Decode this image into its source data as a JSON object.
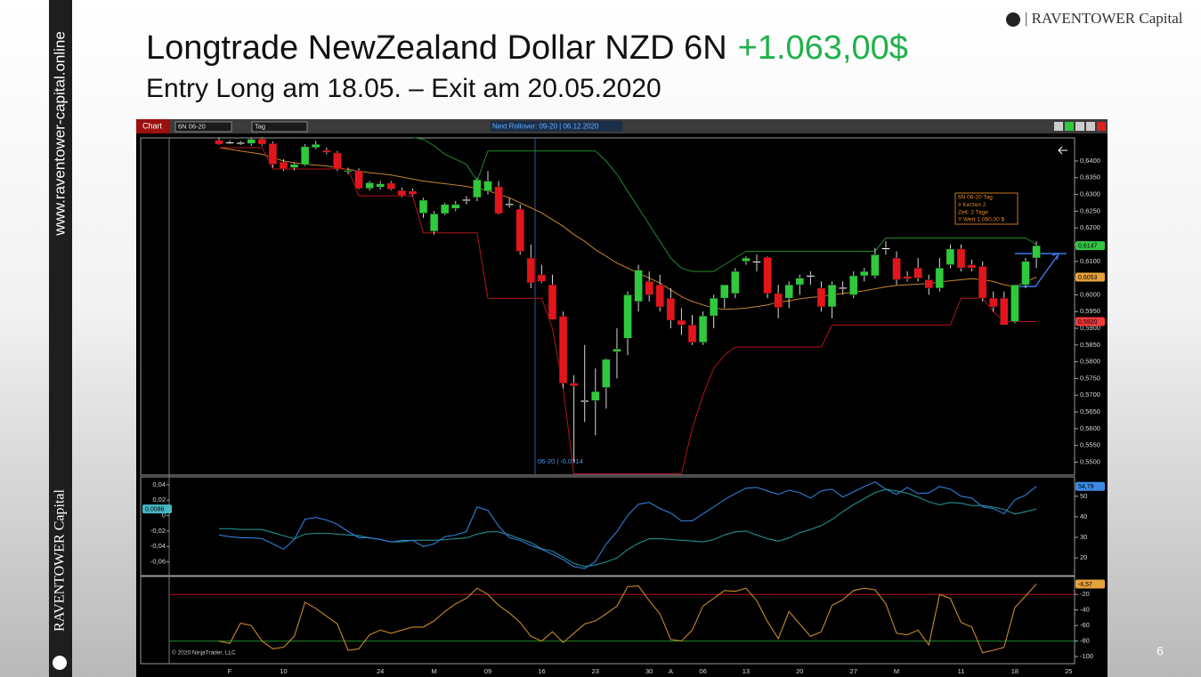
{
  "sidebar": {
    "url": "www.raventower-capital.online",
    "brand": "RAVENTOWER Capital"
  },
  "logo": "| RAVENTOWER Capital",
  "title": "Longtrade NewZealand Dollar NZD 6N",
  "profit": "+1.063,00$",
  "subtitle": "Entry Long am 18.05. – Exit am 20.05.2020",
  "page_number": 6,
  "toolbar": {
    "tab": "Chart",
    "instrument": "6N 06-20",
    "period": "Tag",
    "rollover": "Next Rollover: 09-20 | 06.12.2020"
  },
  "copyright": "© 2020 NinjaTrader, LLC",
  "chart_data": [
    {
      "type": "candlestick",
      "categories": [
        null,
        "F",
        null,
        null,
        null,
        null,
        "10",
        null,
        null,
        null,
        null,
        null,
        null,
        null,
        null,
        "24",
        null,
        null,
        null,
        null,
        "M",
        null,
        null,
        null,
        null,
        "09",
        null,
        null,
        null,
        null,
        "16",
        null,
        null,
        null,
        null,
        "23",
        null,
        null,
        null,
        null,
        "30",
        null,
        "A",
        null,
        null,
        "06",
        null,
        null,
        null,
        "13",
        null,
        null,
        null,
        null,
        "20",
        null,
        null,
        null,
        null,
        "27",
        null,
        null,
        null,
        "M",
        null,
        null,
        null,
        null,
        null,
        "11",
        null,
        null,
        null,
        null,
        "18",
        null,
        null,
        null,
        null,
        "25"
      ],
      "open": [
        0.6462,
        0.6455,
        0.6454,
        0.6452,
        0.6466,
        0.6452,
        0.6397,
        0.638,
        0.6389,
        0.644,
        0.6432,
        0.6424,
        0.6368,
        0.6371,
        0.6318,
        0.6322,
        0.6334,
        0.6312,
        0.631,
        0.6244,
        0.619,
        0.6243,
        0.6258,
        0.6283,
        0.6291,
        0.631,
        0.6323,
        0.627,
        0.6256,
        0.611,
        0.606,
        0.603,
        0.5936,
        0.5736,
        0.5684,
        0.5684,
        0.5723,
        0.583,
        0.587,
        0.598,
        0.604,
        0.603,
        0.599,
        0.5924,
        0.591,
        0.5858,
        0.5937,
        0.599,
        0.6004,
        0.61,
        0.6098,
        0.6112,
        0.6004,
        0.599,
        0.603,
        0.6057,
        0.602,
        0.5964,
        0.602,
        0.6,
        0.6057,
        0.6057,
        0.614,
        0.611,
        0.6055,
        0.608,
        0.6045,
        0.602,
        0.609,
        0.6137,
        0.609,
        0.6085,
        0.599,
        0.599,
        0.592,
        0.603,
        0.611,
        null,
        null,
        null
      ],
      "high": [
        0.647,
        0.6462,
        0.646,
        0.647,
        0.647,
        0.6458,
        0.6405,
        0.6395,
        0.645,
        0.646,
        0.644,
        0.643,
        0.638,
        0.6378,
        0.634,
        0.634,
        0.634,
        0.632,
        0.6318,
        0.629,
        0.625,
        0.6275,
        0.628,
        0.6295,
        0.635,
        0.637,
        0.634,
        0.629,
        0.627,
        0.615,
        0.609,
        0.606,
        0.595,
        0.576,
        0.585,
        0.578,
        0.581,
        0.59,
        0.601,
        0.609,
        0.607,
        0.606,
        0.602,
        0.596,
        0.594,
        0.595,
        0.6,
        0.603,
        0.608,
        0.6115,
        0.612,
        0.6115,
        0.603,
        0.604,
        0.606,
        0.607,
        0.604,
        0.604,
        0.604,
        0.607,
        0.608,
        0.614,
        0.616,
        0.613,
        0.607,
        0.611,
        0.606,
        0.611,
        0.615,
        0.615,
        0.6105,
        0.61,
        0.601,
        0.601,
        0.603,
        0.611,
        0.616,
        null,
        null,
        null
      ],
      "low": [
        0.6448,
        0.645,
        0.6448,
        0.6445,
        0.6445,
        0.638,
        0.637,
        0.6372,
        0.6385,
        0.6435,
        0.642,
        0.637,
        0.636,
        0.6315,
        0.6312,
        0.6315,
        0.6312,
        0.6292,
        0.6295,
        0.623,
        0.618,
        0.6238,
        0.625,
        0.627,
        0.628,
        0.63,
        0.624,
        0.626,
        0.612,
        0.602,
        0.6035,
        0.5925,
        0.572,
        0.55,
        0.562,
        0.558,
        0.566,
        0.575,
        0.582,
        0.595,
        0.598,
        0.595,
        0.59,
        0.588,
        0.585,
        0.585,
        0.59,
        0.596,
        0.599,
        0.609,
        0.607,
        0.599,
        0.593,
        0.596,
        0.6,
        0.603,
        0.595,
        0.593,
        0.6,
        0.599,
        0.604,
        0.605,
        0.612,
        0.603,
        0.604,
        0.604,
        0.6,
        0.601,
        0.608,
        0.607,
        0.607,
        0.598,
        0.595,
        0.591,
        0.5915,
        0.602,
        0.608,
        null,
        null,
        null
      ],
      "close": [
        0.645,
        0.6456,
        0.6455,
        0.6465,
        0.645,
        0.639,
        0.6376,
        0.639,
        0.6443,
        0.645,
        0.6426,
        0.6376,
        0.6372,
        0.6318,
        0.6335,
        0.6332,
        0.6316,
        0.6296,
        0.63,
        0.6283,
        0.6242,
        0.627,
        0.627,
        0.6285,
        0.6344,
        0.634,
        0.6243,
        0.6272,
        0.613,
        0.6036,
        0.604,
        0.5926,
        0.5736,
        0.5728,
        0.5684,
        0.5711,
        0.5807,
        0.5838,
        0.6,
        0.6074,
        0.6,
        0.5964,
        0.5924,
        0.591,
        0.5858,
        0.5937,
        0.599,
        0.603,
        0.607,
        0.611,
        0.61,
        0.6004,
        0.5962,
        0.603,
        0.605,
        0.6058,
        0.5964,
        0.603,
        0.6022,
        0.6057,
        0.607,
        0.612,
        0.614,
        0.6045,
        0.6048,
        0.605,
        0.602,
        0.608,
        0.6137,
        0.608,
        0.608,
        0.599,
        0.5964,
        0.591,
        0.603,
        0.61,
        0.6147,
        null,
        null,
        null
      ],
      "up_color": "#2fc93c",
      "down_color": "#e3151b",
      "doji_color": "#ffffff",
      "channel": [
        {
          "color": "#1f8a2a",
          "values": [
            null,
            null,
            null,
            null,
            null,
            null,
            null,
            null,
            null,
            null,
            null,
            null,
            null,
            null,
            null,
            null,
            null,
            null,
            0.647,
            0.6465,
            0.6445,
            0.642,
            0.6405,
            0.639,
            0.634,
            0.643,
            0.643,
            0.643,
            0.643,
            0.643,
            0.643,
            0.643,
            0.643,
            0.643,
            0.643,
            0.643,
            0.64,
            0.636,
            0.631,
            0.626,
            0.621,
            0.616,
            0.611,
            0.608,
            0.607,
            0.607,
            0.607,
            0.609,
            0.611,
            0.613,
            0.613,
            0.613,
            0.613,
            0.613,
            0.613,
            0.613,
            0.613,
            0.613,
            0.613,
            0.613,
            0.613,
            0.613,
            0.617,
            0.617,
            0.617,
            0.617,
            0.617,
            0.617,
            0.617,
            0.617,
            0.617,
            0.617,
            0.617,
            0.617,
            0.617,
            0.617,
            0.615,
            null,
            null,
            null
          ]
        },
        {
          "color": "#c8842c",
          "values": [
            0.644,
            0.6435,
            0.643,
            0.6425,
            0.642,
            0.641,
            0.64,
            0.6395,
            0.639,
            0.6388,
            0.6385,
            0.638,
            0.6375,
            0.637,
            0.6365,
            0.6362,
            0.6358,
            0.6352,
            0.6346,
            0.634,
            0.6336,
            0.6332,
            0.6328,
            0.6324,
            0.6318,
            0.6312,
            0.63,
            0.629,
            0.6275,
            0.626,
            0.6245,
            0.6225,
            0.6205,
            0.618,
            0.616,
            0.6135,
            0.6115,
            0.6095,
            0.608,
            0.6065,
            0.605,
            0.6035,
            0.6015,
            0.5995,
            0.598,
            0.597,
            0.596,
            0.5957,
            0.5958,
            0.596,
            0.5965,
            0.597,
            0.5978,
            0.5982,
            0.5988,
            0.5992,
            0.5995,
            0.6,
            0.6004,
            0.6008,
            0.6012,
            0.6018,
            0.6024,
            0.6028,
            0.603,
            0.6032,
            0.6034,
            0.6038,
            0.6042,
            0.6045,
            0.6048,
            0.6045,
            0.604,
            0.603,
            0.6025,
            0.6038,
            0.6053,
            null,
            null,
            null
          ]
        },
        {
          "color": "#b3141c",
          "values": [
            0.644,
            0.644,
            0.644,
            0.644,
            0.644,
            0.6376,
            0.6376,
            0.6376,
            0.6376,
            0.6376,
            0.6376,
            0.6376,
            0.6376,
            0.6296,
            0.6296,
            0.6296,
            0.6296,
            0.6296,
            0.6296,
            0.6185,
            0.6185,
            0.6185,
            0.6185,
            0.6185,
            0.6185,
            0.599,
            0.599,
            0.599,
            0.599,
            0.599,
            0.599,
            0.59,
            0.572,
            0.5465,
            0.5465,
            0.5465,
            0.5465,
            0.5465,
            0.5465,
            0.5465,
            0.5465,
            0.5465,
            0.5465,
            0.5465,
            0.56,
            0.57,
            0.578,
            0.582,
            0.5844,
            0.5844,
            0.5844,
            0.5844,
            0.5844,
            0.5844,
            0.5844,
            0.5844,
            0.5844,
            0.591,
            0.591,
            0.591,
            0.591,
            0.591,
            0.591,
            0.591,
            0.591,
            0.591,
            0.591,
            0.591,
            0.591,
            0.599,
            0.599,
            0.599,
            0.595,
            0.592,
            0.592,
            0.592,
            0.592,
            null,
            null,
            null
          ]
        }
      ],
      "ylim": [
        0.5464,
        0.6469
      ],
      "yticks": [
        {
          "value": 0.64,
          "label": "0,6400"
        },
        {
          "value": 0.635,
          "label": "0,6350"
        },
        {
          "value": 0.63,
          "label": "0,6300"
        },
        {
          "value": 0.625,
          "label": "0,6250"
        },
        {
          "value": 0.62,
          "label": "0,6200"
        },
        {
          "value": 0.615,
          "label": "0,6150"
        },
        {
          "value": 0.61,
          "label": "0,6100"
        },
        {
          "value": 0.605,
          "label": "0,6050"
        },
        {
          "value": 0.6,
          "label": "0,6000"
        },
        {
          "value": 0.595,
          "label": "0,5950"
        },
        {
          "value": 0.59,
          "label": "0,5900"
        },
        {
          "value": 0.585,
          "label": "0,5850"
        },
        {
          "value": 0.58,
          "label": "0,5800"
        },
        {
          "value": 0.575,
          "label": "0,5750"
        },
        {
          "value": 0.57,
          "label": "0,5700"
        },
        {
          "value": 0.565,
          "label": "0,5650"
        },
        {
          "value": 0.56,
          "label": "0,5600"
        },
        {
          "value": 0.555,
          "label": "0,5550"
        },
        {
          "value": 0.55,
          "label": "0,5500"
        }
      ],
      "markers": [
        {
          "value": 0.6147,
          "label": "0,6147",
          "color": "#35c646"
        },
        {
          "value": 0.6053,
          "label": "0,6053",
          "color": "#e6a23a"
        },
        {
          "value": 0.592,
          "label": "0,5920",
          "color": "#ef3a3a"
        }
      ],
      "annotation": "06-20 | -0,0014",
      "info": [
        "6N 06-20 Tag",
        "# Kerzen  2",
        "Zeit:     2 Tage",
        "Y Wert   1.060,00 $"
      ]
    },
    {
      "type": "line",
      "ylim": [
        -0.0766,
        0.0491
      ],
      "yticks": [
        {
          "value": 0.04,
          "label": "0,04"
        },
        {
          "value": 0.02,
          "label": "0,02"
        },
        0,
        {
          "value": -0.02,
          "label": "-0,02"
        },
        {
          "value": -0.04,
          "label": "-0,04"
        },
        {
          "value": -0.06,
          "label": "-0,06"
        }
      ],
      "y2lim": [
        11.8,
        59.0
      ],
      "y2ticks": [
        50,
        40,
        30,
        20
      ],
      "series": [
        {
          "color": "#1f8f8f",
          "values": [
            -0.017,
            -0.017,
            -0.018,
            -0.018,
            -0.018,
            -0.022,
            -0.026,
            -0.03,
            -0.024,
            -0.023,
            -0.023,
            -0.024,
            -0.025,
            -0.026,
            -0.029,
            -0.031,
            -0.034,
            -0.034,
            -0.032,
            -0.032,
            -0.032,
            -0.031,
            -0.03,
            -0.029,
            -0.024,
            -0.021,
            -0.021,
            -0.025,
            -0.03,
            -0.035,
            -0.043,
            -0.046,
            -0.054,
            -0.062,
            -0.066,
            -0.064,
            -0.06,
            -0.055,
            -0.044,
            -0.036,
            -0.03,
            -0.03,
            -0.031,
            -0.032,
            -0.033,
            -0.034,
            -0.031,
            -0.025,
            -0.021,
            -0.02,
            -0.025,
            -0.03,
            -0.033,
            -0.029,
            -0.022,
            -0.018,
            -0.013,
            -0.005,
            0.005,
            0.014,
            0.022,
            0.03,
            0.034,
            0.032,
            0.029,
            0.024,
            0.018,
            0.014,
            0.017,
            0.016,
            0.013,
            0.013,
            0.011,
            0.008,
            0.002,
            0.005,
            0.0086,
            null,
            null,
            null
          ]
        },
        {
          "color": "#2f7fd8",
          "axis": "y2",
          "values": [
            31.1,
            30.3,
            29.8,
            29.8,
            29.4,
            26.8,
            24.2,
            29.0,
            38.8,
            39.7,
            38.4,
            36.3,
            32.8,
            29.8,
            29.8,
            29.0,
            27.7,
            28.5,
            28.5,
            25.5,
            26.8,
            30.3,
            31.1,
            32.8,
            44.8,
            43.1,
            35.4,
            29.8,
            28.5,
            26.0,
            24.2,
            21.7,
            19.1,
            15.7,
            14.8,
            18.2,
            26.8,
            32.8,
            40.6,
            46.1,
            47.0,
            44.0,
            41.8,
            38.0,
            38.0,
            41.4,
            44.8,
            48.3,
            51.3,
            53.9,
            54.3,
            52.6,
            50.9,
            53.0,
            51.7,
            49.1,
            52.6,
            53.4,
            49.6,
            52.1,
            54.7,
            56.9,
            53.4,
            50.9,
            54.3,
            51.3,
            51.7,
            54.7,
            53.4,
            50.0,
            49.1,
            44.8,
            44.0,
            41.4,
            48.3,
            50.5,
            54.79,
            null,
            null,
            null
          ]
        }
      ],
      "markers": [
        {
          "value": 0.0086,
          "label": "0,0086",
          "color": "#47b7c4"
        },
        {
          "value": 54.79,
          "label": "54,79",
          "color": "#3b8be6",
          "axis": "y2"
        }
      ]
    },
    {
      "type": "line",
      "y2lim": [
        -108,
        2
      ],
      "y2ticks": [
        -20,
        -40,
        -60,
        -80,
        -100
      ],
      "levels": [
        {
          "value": -20,
          "color": "#b3141c",
          "axis": "y2"
        },
        {
          "value": -80,
          "color": "#1f8a2a",
          "axis": "y2"
        }
      ],
      "series": [
        {
          "color": "#c8892c",
          "axis": "y2",
          "values": [
            -80,
            -83,
            -57,
            -60,
            -80,
            -90,
            -88,
            -74,
            -30,
            -38,
            -48,
            -58,
            -92,
            -90,
            -72,
            -66,
            -70,
            -66,
            -62,
            -62,
            -54,
            -42,
            -32,
            -25,
            -12,
            -20,
            -34,
            -44,
            -56,
            -74,
            -80,
            -68,
            -82,
            -70,
            -58,
            -54,
            -45,
            -35,
            -10,
            -9,
            -28,
            -45,
            -78,
            -80,
            -66,
            -35,
            -25,
            -15,
            -16,
            -12,
            -28,
            -55,
            -77,
            -42,
            -58,
            -74,
            -68,
            -34,
            -27,
            -15,
            -12,
            -14,
            -32,
            -70,
            -72,
            -66,
            -85,
            -20,
            -25,
            -56,
            -62,
            -95,
            -92,
            -88,
            -37,
            -22,
            -6.57,
            null,
            null,
            null
          ]
        }
      ],
      "markers": [
        {
          "value": -6.57,
          "label": "-6,57",
          "color": "#e6a23a",
          "axis": "y2"
        }
      ]
    }
  ]
}
